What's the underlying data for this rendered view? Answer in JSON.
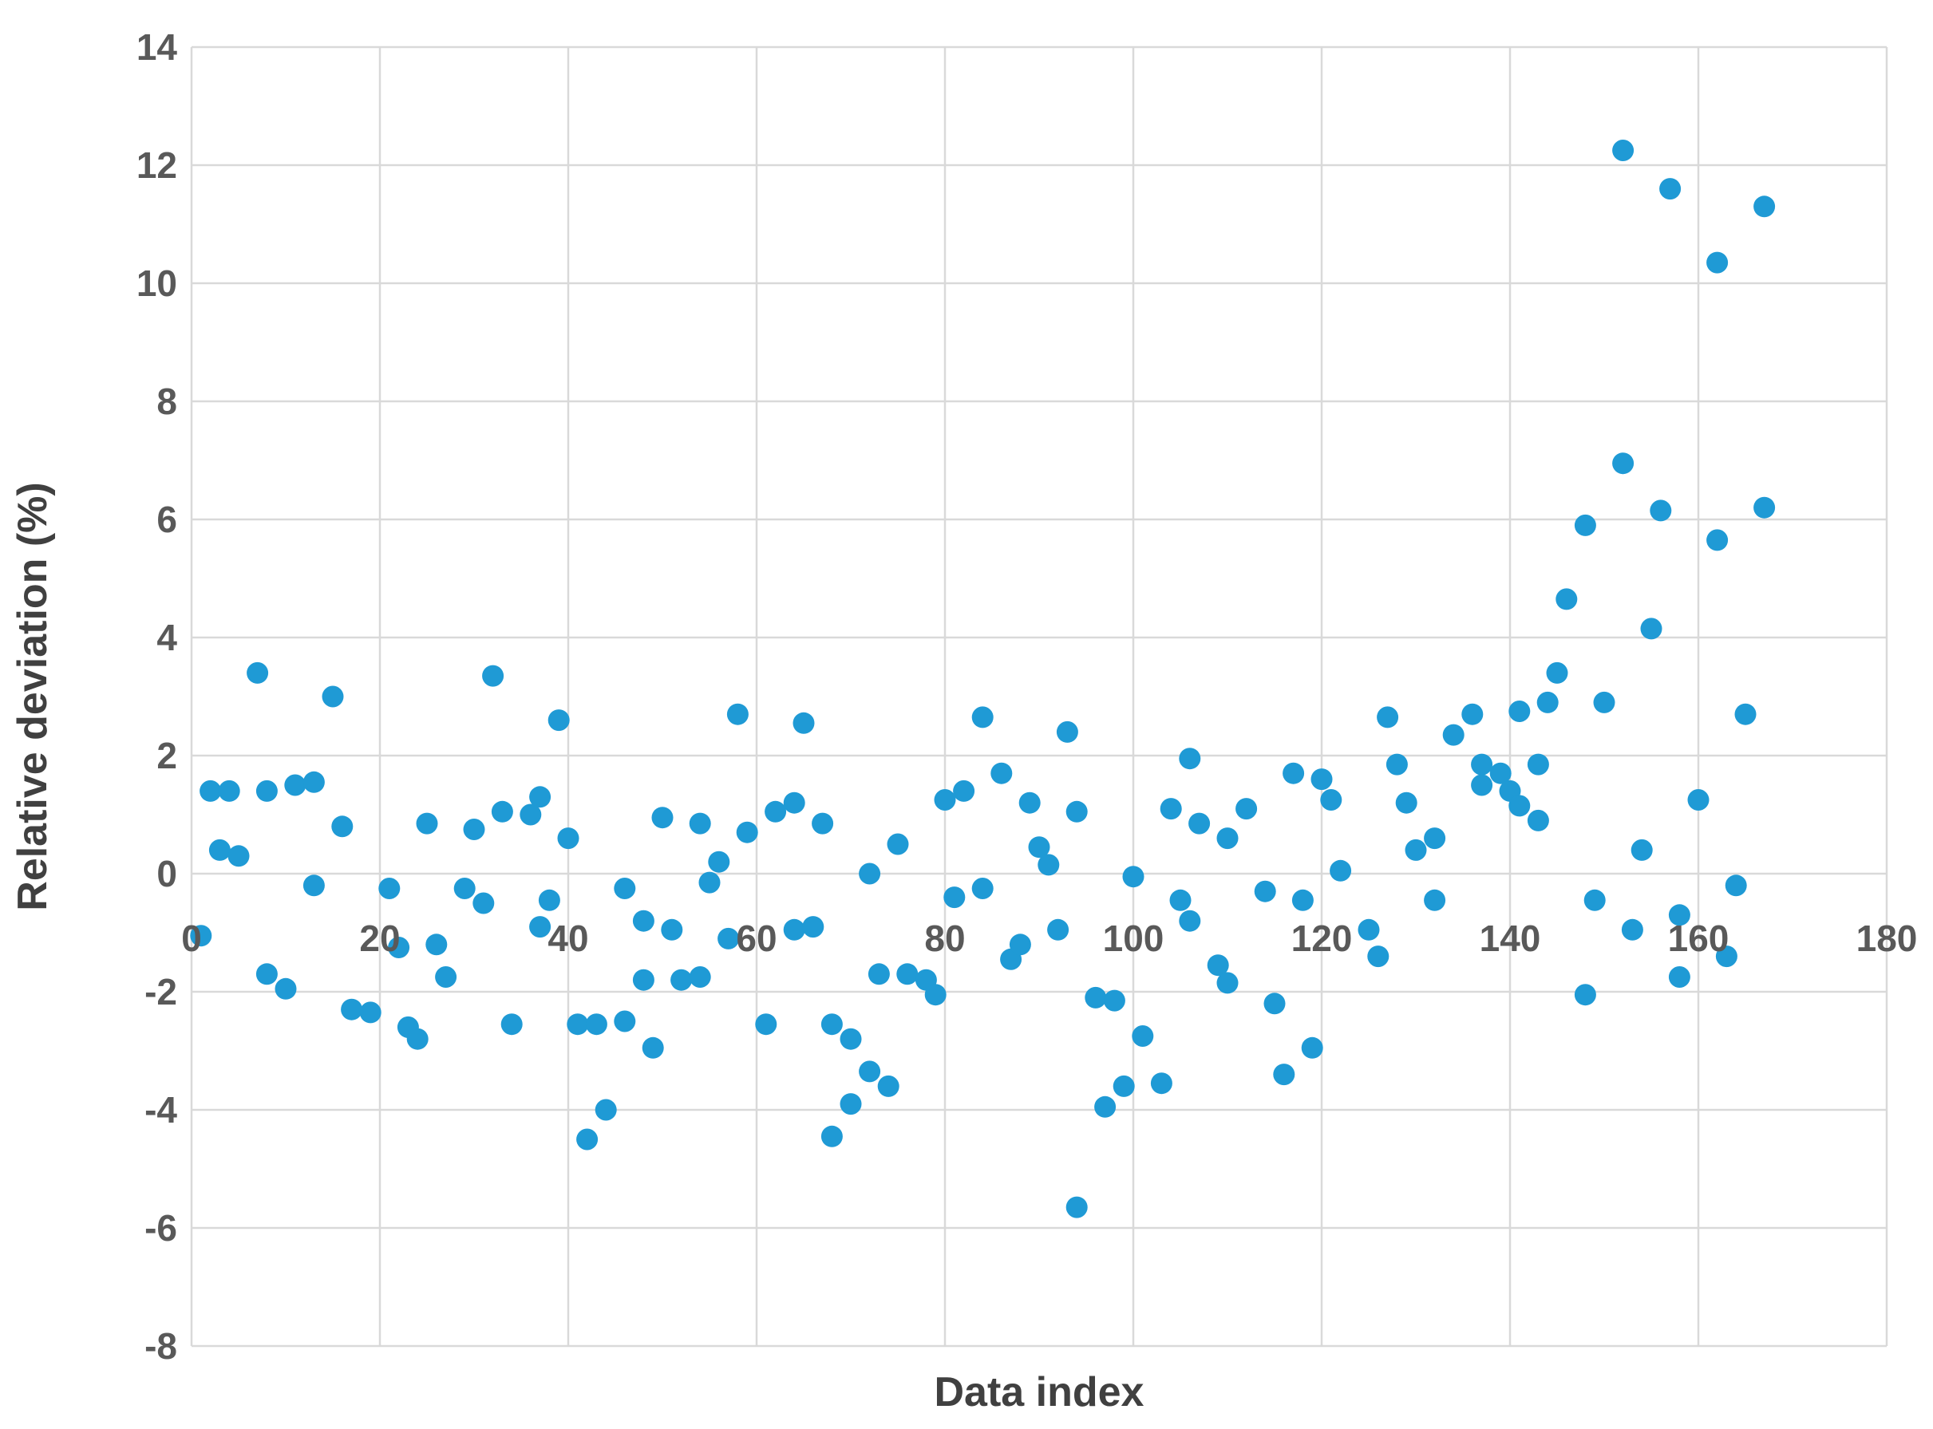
{
  "figure": {
    "background": "#FFFFFF"
  },
  "chart_data": {
    "type": "scatter",
    "title": "",
    "xlabel": "Data index",
    "ylabel": "Relative deviation (%)",
    "xlim": [
      0,
      180
    ],
    "ylim": [
      -8,
      14
    ],
    "x_ticks": [
      0,
      20,
      40,
      60,
      80,
      100,
      120,
      140,
      160,
      180
    ],
    "y_ticks": [
      14,
      12,
      10,
      8,
      6,
      4,
      2,
      0,
      -2,
      -4,
      -6,
      -8
    ],
    "grid": true,
    "legend": "none",
    "marker_color": "#1F9AD5",
    "grid_color": "#D9D9D9",
    "axis_text_color": "#595959",
    "points": [
      [
        1,
        -1.05
      ],
      [
        2,
        1.4
      ],
      [
        3,
        0.4
      ],
      [
        4,
        1.4
      ],
      [
        5,
        0.3
      ],
      [
        7,
        3.4
      ],
      [
        8,
        1.4
      ],
      [
        8,
        -1.7
      ],
      [
        10,
        -1.95
      ],
      [
        11,
        1.5
      ],
      [
        13,
        1.55
      ],
      [
        13,
        -0.2
      ],
      [
        15,
        3.0
      ],
      [
        16,
        0.8
      ],
      [
        17,
        -2.3
      ],
      [
        19,
        -2.35
      ],
      [
        21,
        -0.25
      ],
      [
        22,
        -1.25
      ],
      [
        23,
        -2.6
      ],
      [
        24,
        -2.8
      ],
      [
        25,
        0.85
      ],
      [
        26,
        -1.2
      ],
      [
        27,
        -1.75
      ],
      [
        29,
        -0.25
      ],
      [
        30,
        0.75
      ],
      [
        31,
        -0.5
      ],
      [
        32,
        3.35
      ],
      [
        33,
        1.05
      ],
      [
        34,
        -2.55
      ],
      [
        36,
        1.0
      ],
      [
        37,
        1.3
      ],
      [
        37,
        -0.9
      ],
      [
        38,
        -0.45
      ],
      [
        39,
        2.6
      ],
      [
        40,
        0.6
      ],
      [
        41,
        -2.55
      ],
      [
        42,
        -4.5
      ],
      [
        43,
        -2.55
      ],
      [
        44,
        -4.0
      ],
      [
        46,
        -2.5
      ],
      [
        46,
        -0.25
      ],
      [
        48,
        -0.8
      ],
      [
        48,
        -1.8
      ],
      [
        49,
        -2.95
      ],
      [
        50,
        0.95
      ],
      [
        51,
        -0.95
      ],
      [
        52,
        -1.8
      ],
      [
        54,
        0.85
      ],
      [
        54,
        -1.75
      ],
      [
        55,
        -0.15
      ],
      [
        56,
        0.2
      ],
      [
        57,
        -1.1
      ],
      [
        58,
        2.7
      ],
      [
        59,
        0.7
      ],
      [
        61,
        -2.55
      ],
      [
        62,
        1.05
      ],
      [
        64,
        1.2
      ],
      [
        64,
        -0.95
      ],
      [
        65,
        2.55
      ],
      [
        66,
        -0.9
      ],
      [
        67,
        0.85
      ],
      [
        68,
        -2.55
      ],
      [
        68,
        -4.45
      ],
      [
        70,
        -2.8
      ],
      [
        70,
        -3.9
      ],
      [
        72,
        0.0
      ],
      [
        72,
        -3.35
      ],
      [
        73,
        -1.7
      ],
      [
        74,
        -3.6
      ],
      [
        75,
        0.5
      ],
      [
        76,
        -1.7
      ],
      [
        78,
        -1.8
      ],
      [
        79,
        -2.05
      ],
      [
        80,
        1.25
      ],
      [
        81,
        -0.4
      ],
      [
        82,
        1.4
      ],
      [
        84,
        2.65
      ],
      [
        84,
        -0.25
      ],
      [
        86,
        1.7
      ],
      [
        87,
        -1.45
      ],
      [
        88,
        -1.2
      ],
      [
        89,
        1.2
      ],
      [
        90,
        0.45
      ],
      [
        91,
        0.15
      ],
      [
        92,
        -0.95
      ],
      [
        93,
        2.4
      ],
      [
        94,
        1.05
      ],
      [
        94,
        -5.65
      ],
      [
        96,
        -2.1
      ],
      [
        97,
        -3.95
      ],
      [
        98,
        -2.15
      ],
      [
        99,
        -3.6
      ],
      [
        100,
        -0.05
      ],
      [
        101,
        -2.75
      ],
      [
        103,
        -3.55
      ],
      [
        104,
        1.1
      ],
      [
        105,
        -0.45
      ],
      [
        106,
        1.95
      ],
      [
        106,
        -0.8
      ],
      [
        107,
        0.85
      ],
      [
        109,
        -1.55
      ],
      [
        110,
        0.6
      ],
      [
        110,
        -1.85
      ],
      [
        112,
        1.1
      ],
      [
        114,
        -0.3
      ],
      [
        115,
        -2.2
      ],
      [
        116,
        -3.4
      ],
      [
        117,
        1.7
      ],
      [
        118,
        -0.45
      ],
      [
        119,
        -2.95
      ],
      [
        120,
        1.6
      ],
      [
        121,
        1.25
      ],
      [
        122,
        0.05
      ],
      [
        125,
        -0.95
      ],
      [
        126,
        -1.4
      ],
      [
        127,
        2.65
      ],
      [
        128,
        1.85
      ],
      [
        129,
        1.2
      ],
      [
        130,
        0.4
      ],
      [
        132,
        0.6
      ],
      [
        132,
        -0.45
      ],
      [
        134,
        2.35
      ],
      [
        136,
        2.7
      ],
      [
        137,
        1.85
      ],
      [
        137,
        1.5
      ],
      [
        139,
        1.7
      ],
      [
        140,
        1.4
      ],
      [
        141,
        2.75
      ],
      [
        141,
        1.15
      ],
      [
        143,
        1.85
      ],
      [
        143,
        0.9
      ],
      [
        144,
        2.9
      ],
      [
        145,
        3.4
      ],
      [
        146,
        4.65
      ],
      [
        148,
        5.9
      ],
      [
        148,
        -2.05
      ],
      [
        149,
        -0.45
      ],
      [
        150,
        2.9
      ],
      [
        152,
        12.25
      ],
      [
        152,
        6.95
      ],
      [
        153,
        -0.95
      ],
      [
        154,
        0.4
      ],
      [
        155,
        4.15
      ],
      [
        156,
        6.15
      ],
      [
        157,
        11.6
      ],
      [
        158,
        -0.7
      ],
      [
        158,
        -1.75
      ],
      [
        160,
        1.25
      ],
      [
        162,
        10.35
      ],
      [
        162,
        5.65
      ],
      [
        163,
        -1.4
      ],
      [
        164,
        -0.2
      ],
      [
        165,
        2.7
      ],
      [
        167,
        11.3
      ],
      [
        167,
        6.2
      ]
    ]
  }
}
